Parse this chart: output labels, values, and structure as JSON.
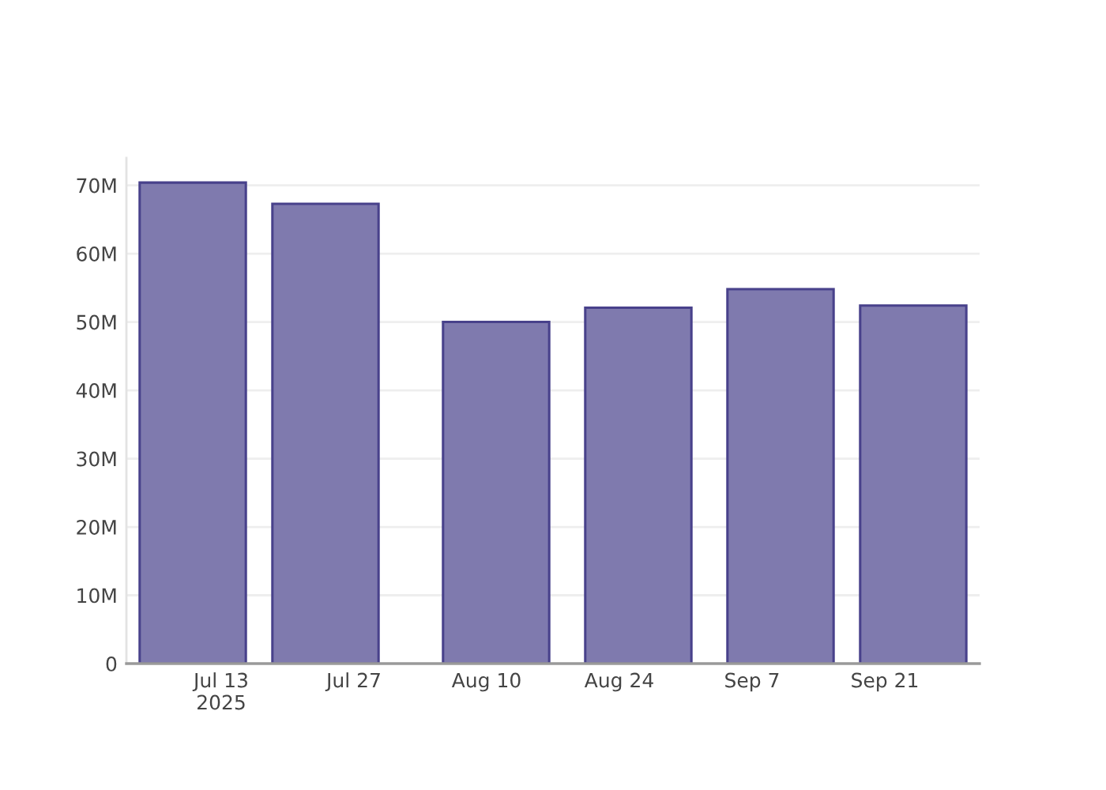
{
  "chart_data": {
    "type": "bar",
    "x": [
      "2025-07-10",
      "2025-07-24",
      "2025-08-11",
      "2025-08-26",
      "2025-09-10",
      "2025-09-24"
    ],
    "values": [
      70400000,
      67300000,
      50000000,
      52100000,
      54800000,
      52400000
    ],
    "color": "#7f7aae",
    "xlim": [
      "2025-07-03",
      "2025-10-01"
    ],
    "xticks": [
      {
        "value": "2025-07-13",
        "label": "Jul 13\n2025"
      },
      {
        "value": "2025-07-27",
        "label": "Jul 27"
      },
      {
        "value": "2025-08-10",
        "label": "Aug 10"
      },
      {
        "value": "2025-08-24",
        "label": "Aug 24"
      },
      {
        "value": "2025-09-07",
        "label": "Sep 7"
      },
      {
        "value": "2025-09-21",
        "label": "Sep 21"
      }
    ],
    "ylim": [
      0,
      74000000
    ],
    "yticks": [
      0,
      {
        "value": 10000000,
        "label": "10M"
      },
      {
        "value": 20000000,
        "label": "20M"
      },
      {
        "value": 30000000,
        "label": "30M"
      },
      {
        "value": 40000000,
        "label": "40M"
      },
      {
        "value": 50000000,
        "label": "50M"
      },
      {
        "value": 60000000,
        "label": "60M"
      },
      {
        "value": 70000000,
        "label": "70M"
      }
    ],
    "grid": "y"
  }
}
